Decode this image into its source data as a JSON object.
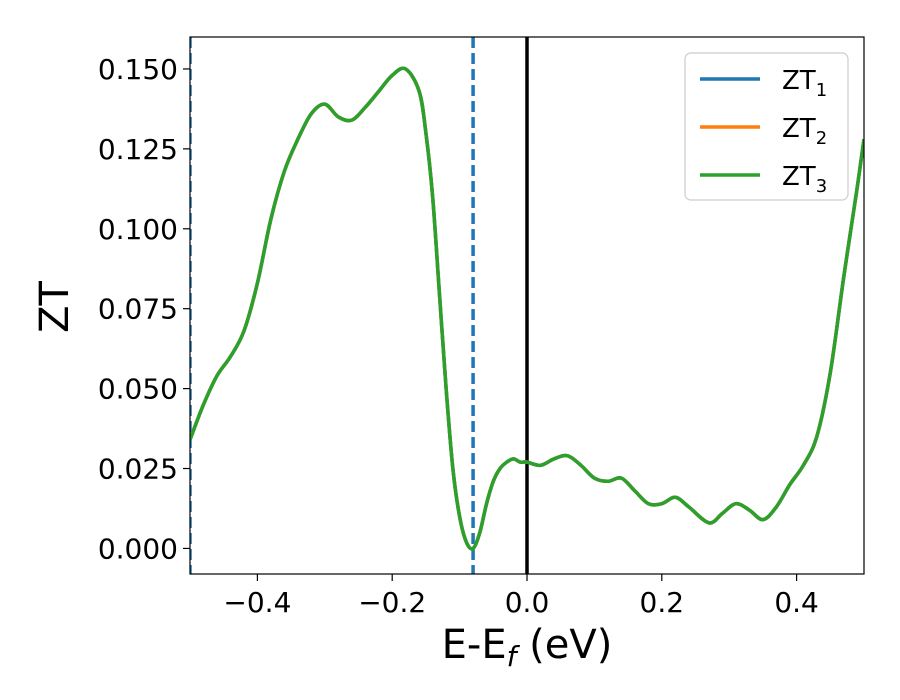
{
  "chart_data": {
    "type": "line",
    "xlabel": "E-E",
    "xlabel_sub": "f",
    "xlabel_unit": " (eV)",
    "ylabel": "ZT",
    "xlim": [
      -0.5,
      0.5
    ],
    "ylim": [
      -0.008,
      0.16
    ],
    "xticks": [
      -0.4,
      -0.2,
      0.0,
      0.2,
      0.4
    ],
    "xtick_labels": [
      "−0.4",
      "−0.2",
      "0.0",
      "0.2",
      "0.4"
    ],
    "yticks": [
      0.0,
      0.025,
      0.05,
      0.075,
      0.1,
      0.125,
      0.15
    ],
    "ytick_labels": [
      "0.000",
      "0.025",
      "0.050",
      "0.075",
      "0.100",
      "0.125",
      "0.150"
    ],
    "grid": false,
    "legend_position": "top-right",
    "vlines": [
      {
        "x": -0.5,
        "color": "#1f77b4",
        "style": "dashed"
      },
      {
        "x": -0.08,
        "color": "#1f77b4",
        "style": "dashed"
      },
      {
        "x": 0.0,
        "color": "#000000",
        "style": "solid"
      }
    ],
    "x": [
      -0.5,
      -0.48,
      -0.46,
      -0.44,
      -0.42,
      -0.4,
      -0.38,
      -0.36,
      -0.34,
      -0.32,
      -0.3,
      -0.28,
      -0.26,
      -0.24,
      -0.22,
      -0.2,
      -0.18,
      -0.16,
      -0.15,
      -0.14,
      -0.13,
      -0.12,
      -0.11,
      -0.1,
      -0.09,
      -0.08,
      -0.07,
      -0.06,
      -0.05,
      -0.04,
      -0.03,
      -0.02,
      -0.01,
      0.0,
      0.02,
      0.04,
      0.06,
      0.08,
      0.1,
      0.12,
      0.14,
      0.16,
      0.18,
      0.2,
      0.22,
      0.24,
      0.27,
      0.29,
      0.31,
      0.33,
      0.35,
      0.37,
      0.39,
      0.41,
      0.43,
      0.45,
      0.47,
      0.49,
      0.5
    ],
    "series": [
      {
        "name": "ZT",
        "name_sub": "1",
        "color": "#1f77b4",
        "values": [
          0.034,
          0.045,
          0.054,
          0.06,
          0.068,
          0.083,
          0.103,
          0.118,
          0.128,
          0.136,
          0.139,
          0.135,
          0.134,
          0.138,
          0.143,
          0.148,
          0.15,
          0.143,
          0.13,
          0.11,
          0.08,
          0.05,
          0.025,
          0.01,
          0.002,
          0.0,
          0.005,
          0.014,
          0.021,
          0.025,
          0.027,
          0.028,
          0.027,
          0.027,
          0.026,
          0.028,
          0.029,
          0.026,
          0.022,
          0.021,
          0.022,
          0.018,
          0.014,
          0.014,
          0.016,
          0.013,
          0.008,
          0.011,
          0.014,
          0.012,
          0.009,
          0.013,
          0.02,
          0.026,
          0.035,
          0.055,
          0.085,
          0.113,
          0.128
        ]
      },
      {
        "name": "ZT",
        "name_sub": "2",
        "color": "#ff7f0e",
        "values": [
          0.034,
          0.045,
          0.054,
          0.06,
          0.068,
          0.083,
          0.103,
          0.118,
          0.128,
          0.136,
          0.139,
          0.135,
          0.134,
          0.138,
          0.143,
          0.148,
          0.15,
          0.143,
          0.13,
          0.11,
          0.08,
          0.05,
          0.025,
          0.01,
          0.002,
          0.0,
          0.005,
          0.014,
          0.021,
          0.025,
          0.027,
          0.028,
          0.027,
          0.027,
          0.026,
          0.028,
          0.029,
          0.026,
          0.022,
          0.021,
          0.022,
          0.018,
          0.014,
          0.014,
          0.016,
          0.013,
          0.008,
          0.011,
          0.014,
          0.012,
          0.009,
          0.013,
          0.02,
          0.026,
          0.035,
          0.055,
          0.085,
          0.113,
          0.128
        ]
      },
      {
        "name": "ZT",
        "name_sub": "3",
        "color": "#2ca02c",
        "values": [
          0.034,
          0.045,
          0.054,
          0.06,
          0.068,
          0.083,
          0.103,
          0.118,
          0.128,
          0.136,
          0.139,
          0.135,
          0.134,
          0.138,
          0.143,
          0.148,
          0.15,
          0.143,
          0.13,
          0.11,
          0.08,
          0.05,
          0.025,
          0.01,
          0.002,
          0.0,
          0.005,
          0.014,
          0.021,
          0.025,
          0.027,
          0.028,
          0.027,
          0.027,
          0.026,
          0.028,
          0.029,
          0.026,
          0.022,
          0.021,
          0.022,
          0.018,
          0.014,
          0.014,
          0.016,
          0.013,
          0.008,
          0.011,
          0.014,
          0.012,
          0.009,
          0.013,
          0.02,
          0.026,
          0.035,
          0.055,
          0.085,
          0.113,
          0.128
        ]
      }
    ]
  }
}
